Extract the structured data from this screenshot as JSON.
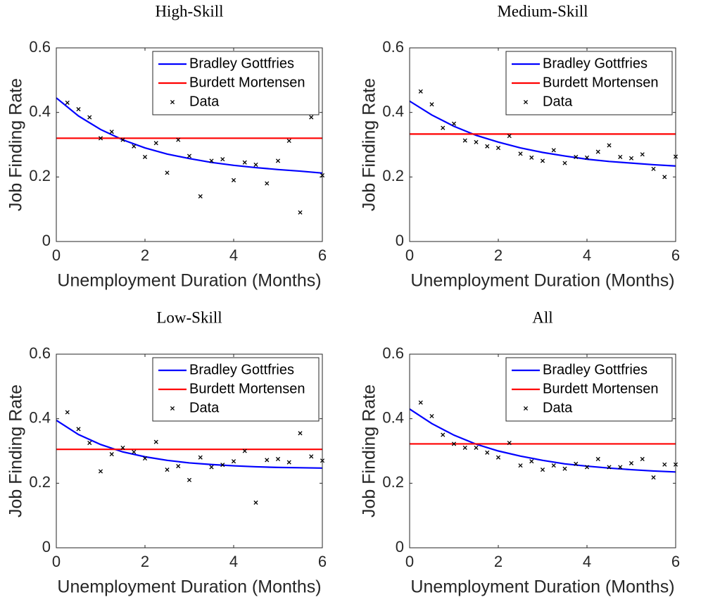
{
  "chart_data": [
    {
      "type": "line",
      "title": "High-Skill",
      "xlabel": "Unemployment Duration (Months)",
      "ylabel": "Job Finding Rate",
      "xlim": [
        0,
        6
      ],
      "ylim": [
        0,
        0.6
      ],
      "xticks": [
        0,
        2,
        4,
        6
      ],
      "yticks": [
        0,
        0.2,
        0.4,
        0.6
      ],
      "legend": "upper right",
      "series": [
        {
          "name": "Bradley Gottfries",
          "color": "#0000ff",
          "mode": "line",
          "x": [
            0,
            0.5,
            1,
            1.5,
            2,
            2.5,
            3,
            3.5,
            4,
            4.5,
            5,
            5.5,
            6
          ],
          "values": [
            0.445,
            0.389,
            0.347,
            0.315,
            0.29,
            0.271,
            0.257,
            0.245,
            0.236,
            0.229,
            0.223,
            0.218,
            0.212
          ]
        },
        {
          "name": "Burdett Mortensen",
          "color": "#ff0000",
          "mode": "line",
          "x": [
            0,
            6
          ],
          "values": [
            0.32,
            0.32
          ]
        },
        {
          "name": "Data",
          "color": "#000000",
          "mode": "markers",
          "x": [
            0.25,
            0.5,
            0.75,
            1,
            1.25,
            1.5,
            1.75,
            2,
            2.25,
            2.5,
            2.75,
            3,
            3.25,
            3.5,
            3.75,
            4,
            4.25,
            4.5,
            4.75,
            5,
            5.25,
            5.5,
            5.75,
            6
          ],
          "values": [
            0.43,
            0.41,
            0.385,
            0.32,
            0.34,
            0.315,
            0.295,
            0.262,
            0.305,
            0.213,
            0.315,
            0.265,
            0.14,
            0.25,
            0.255,
            0.19,
            0.245,
            0.238,
            0.18,
            0.25,
            0.312,
            0.09,
            0.385,
            0.205
          ]
        }
      ]
    },
    {
      "type": "line",
      "title": "Medium-Skill",
      "xlabel": "Unemployment Duration (Months)",
      "ylabel": "Job Finding Rate",
      "xlim": [
        0,
        6
      ],
      "ylim": [
        0,
        0.6
      ],
      "xticks": [
        0,
        2,
        4,
        6
      ],
      "yticks": [
        0,
        0.2,
        0.4,
        0.6
      ],
      "legend": "upper right",
      "series": [
        {
          "name": "Bradley Gottfries",
          "color": "#0000ff",
          "mode": "line",
          "x": [
            0,
            0.5,
            1,
            1.5,
            2,
            2.5,
            3,
            3.5,
            4,
            4.5,
            5,
            5.5,
            6
          ],
          "values": [
            0.435,
            0.392,
            0.357,
            0.329,
            0.308,
            0.29,
            0.276,
            0.265,
            0.255,
            0.248,
            0.243,
            0.238,
            0.234
          ]
        },
        {
          "name": "Burdett Mortensen",
          "color": "#ff0000",
          "mode": "line",
          "x": [
            0,
            6
          ],
          "values": [
            0.333,
            0.333
          ]
        },
        {
          "name": "Data",
          "color": "#000000",
          "mode": "markers",
          "x": [
            0.25,
            0.5,
            0.75,
            1,
            1.25,
            1.5,
            1.75,
            2,
            2.25,
            2.5,
            2.75,
            3,
            3.25,
            3.5,
            3.75,
            4,
            4.25,
            4.5,
            4.75,
            5,
            5.25,
            5.5,
            5.75,
            6
          ],
          "values": [
            0.465,
            0.425,
            0.352,
            0.365,
            0.313,
            0.308,
            0.295,
            0.29,
            0.327,
            0.272,
            0.26,
            0.25,
            0.283,
            0.243,
            0.262,
            0.26,
            0.278,
            0.298,
            0.262,
            0.258,
            0.27,
            0.225,
            0.2,
            0.263
          ]
        }
      ]
    },
    {
      "type": "line",
      "title": "Low-Skill",
      "xlabel": "Unemployment Duration (Months)",
      "ylabel": "Job Finding Rate",
      "xlim": [
        0,
        6
      ],
      "ylim": [
        0,
        0.6
      ],
      "xticks": [
        0,
        2,
        4,
        6
      ],
      "yticks": [
        0,
        0.2,
        0.4,
        0.6
      ],
      "legend": "upper right",
      "series": [
        {
          "name": "Bradley Gottfries",
          "color": "#0000ff",
          "mode": "line",
          "x": [
            0,
            0.5,
            1,
            1.5,
            2,
            2.5,
            3,
            3.5,
            4,
            4.5,
            5,
            5.5,
            6
          ],
          "values": [
            0.395,
            0.351,
            0.32,
            0.297,
            0.282,
            0.271,
            0.263,
            0.258,
            0.254,
            0.251,
            0.249,
            0.248,
            0.247
          ]
        },
        {
          "name": "Burdett Mortensen",
          "color": "#ff0000",
          "mode": "line",
          "x": [
            0,
            6
          ],
          "values": [
            0.305,
            0.305
          ]
        },
        {
          "name": "Data",
          "color": "#000000",
          "mode": "markers",
          "x": [
            0.25,
            0.5,
            0.75,
            1,
            1.25,
            1.5,
            1.75,
            2,
            2.25,
            2.5,
            2.75,
            3,
            3.25,
            3.5,
            3.75,
            4,
            4.25,
            4.5,
            4.75,
            5,
            5.25,
            5.5,
            5.75,
            6
          ],
          "values": [
            0.42,
            0.368,
            0.325,
            0.237,
            0.29,
            0.31,
            0.297,
            0.277,
            0.328,
            0.242,
            0.253,
            0.21,
            0.28,
            0.25,
            0.257,
            0.268,
            0.3,
            0.14,
            0.272,
            0.275,
            0.265,
            0.355,
            0.283,
            0.27
          ]
        }
      ]
    },
    {
      "type": "line",
      "title": "All",
      "xlabel": "Unemployment Duration (Months)",
      "ylabel": "Job Finding Rate",
      "xlim": [
        0,
        6
      ],
      "ylim": [
        0,
        0.6
      ],
      "xticks": [
        0,
        2,
        4,
        6
      ],
      "yticks": [
        0,
        0.2,
        0.4,
        0.6
      ],
      "legend": "upper right",
      "series": [
        {
          "name": "Bradley Gottfries",
          "color": "#0000ff",
          "mode": "line",
          "x": [
            0,
            0.5,
            1,
            1.5,
            2,
            2.5,
            3,
            3.5,
            4,
            4.5,
            5,
            5.5,
            6
          ],
          "values": [
            0.43,
            0.385,
            0.349,
            0.321,
            0.3,
            0.284,
            0.271,
            0.26,
            0.253,
            0.247,
            0.242,
            0.238,
            0.235
          ]
        },
        {
          "name": "Burdett Mortensen",
          "color": "#ff0000",
          "mode": "line",
          "x": [
            0,
            6
          ],
          "values": [
            0.322,
            0.322
          ]
        },
        {
          "name": "Data",
          "color": "#000000",
          "mode": "markers",
          "x": [
            0.25,
            0.5,
            0.75,
            1,
            1.25,
            1.5,
            1.75,
            2,
            2.25,
            2.5,
            2.75,
            3,
            3.25,
            3.5,
            3.75,
            4,
            4.25,
            4.5,
            4.75,
            5,
            5.25,
            5.5,
            5.75,
            6
          ],
          "values": [
            0.45,
            0.408,
            0.35,
            0.322,
            0.31,
            0.31,
            0.295,
            0.28,
            0.325,
            0.255,
            0.268,
            0.242,
            0.255,
            0.245,
            0.26,
            0.25,
            0.275,
            0.25,
            0.25,
            0.262,
            0.275,
            0.218,
            0.258,
            0.258
          ]
        }
      ]
    }
  ]
}
